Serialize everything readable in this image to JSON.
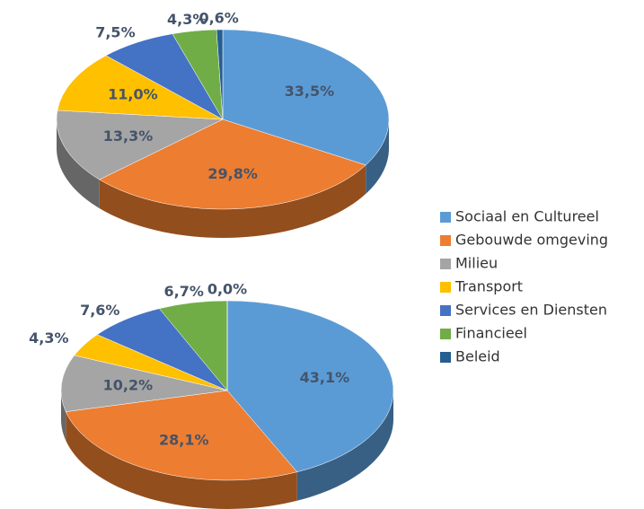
{
  "categories": [
    "Sociaal en Cultureel",
    "Gebouwde omgeving",
    "Milieu",
    "Transport",
    "Services en Diensten",
    "Financieel",
    "Beleid"
  ],
  "colors": [
    "#5b9bd5",
    "#ed7d31",
    "#a5a5a5",
    "#ffc000",
    "#4472c4",
    "#70ad47",
    "#255e91"
  ],
  "chart_data": [
    {
      "type": "pie",
      "values": [
        33.5,
        29.8,
        13.3,
        11.0,
        7.5,
        4.3,
        0.6
      ],
      "value_labels": [
        "33,5%",
        "29,8%",
        "13,3%",
        "11,0%",
        "7,5%",
        "4,3%",
        "0,6%"
      ]
    },
    {
      "type": "pie",
      "values": [
        43.1,
        28.1,
        10.2,
        4.3,
        7.6,
        6.7,
        0.0
      ],
      "value_labels": [
        "43,1%",
        "28,1%",
        "10,2%",
        "4,3%",
        "7,6%",
        "6,7%",
        "0,0%"
      ]
    }
  ]
}
